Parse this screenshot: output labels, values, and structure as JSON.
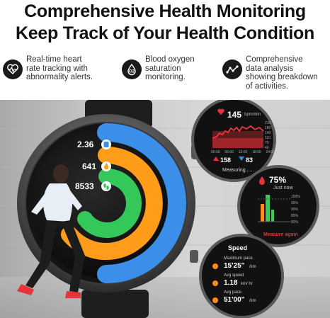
{
  "headline": {
    "line1": "Comprehensive Health Monitoring",
    "line2": "Keep Track of Your Health Condition"
  },
  "features": [
    {
      "icon": "heart-pulse-icon",
      "text_lines": [
        "Real-time heart",
        "rate tracking with",
        "abnormality alerts."
      ]
    },
    {
      "icon": "o2-saturation-icon",
      "text_lines": [
        "Blood oxygen",
        "saturation",
        "monitoring."
      ]
    },
    {
      "icon": "analysis-chart-icon",
      "text_lines": [
        "Comprehensive",
        "data analysis",
        "showing breakdown",
        "of activities."
      ]
    }
  ],
  "watch": {
    "stats": [
      {
        "value": "2.36",
        "icon": "distance-icon",
        "color": "#3b8fe8"
      },
      {
        "value": "641",
        "icon": "flame-icon",
        "color": "#ff9c1a"
      },
      {
        "value": "8533",
        "icon": "footsteps-icon",
        "color": "#34c759"
      }
    ]
  },
  "heart_screen": {
    "value": "145",
    "unit": "bpm/min",
    "y_ticks": [
      "210",
      "180",
      "140",
      "110",
      "70",
      "40"
    ],
    "x_ticks": [
      "00:00",
      "06:00",
      "12:00",
      "18:00",
      "24:00"
    ],
    "max": "158",
    "min": "83",
    "status": "Measuring......"
  },
  "spo2_screen": {
    "value": "75%",
    "when": "Just now",
    "y_ticks": [
      "100%",
      "95%",
      "90%",
      "85%",
      "80%"
    ],
    "action": "Measure again"
  },
  "speed_screen": {
    "title": "Speed",
    "rows": [
      {
        "label": "Maximum pace",
        "value": "15'25\"",
        "unit": "/km"
      },
      {
        "label": "Avg speed",
        "value": "1.18",
        "unit": "km/ hr"
      },
      {
        "label": "Avg pace",
        "value": "51'00\"",
        "unit": "/km"
      }
    ]
  },
  "colors": {
    "heart_red": "#e8333a",
    "ring_blue": "#3b8fe8",
    "ring_orange": "#ff9c1a",
    "ring_green": "#34c759",
    "spo2_orange": "#ff8c1a",
    "spo2_green": "#3cc85a"
  }
}
